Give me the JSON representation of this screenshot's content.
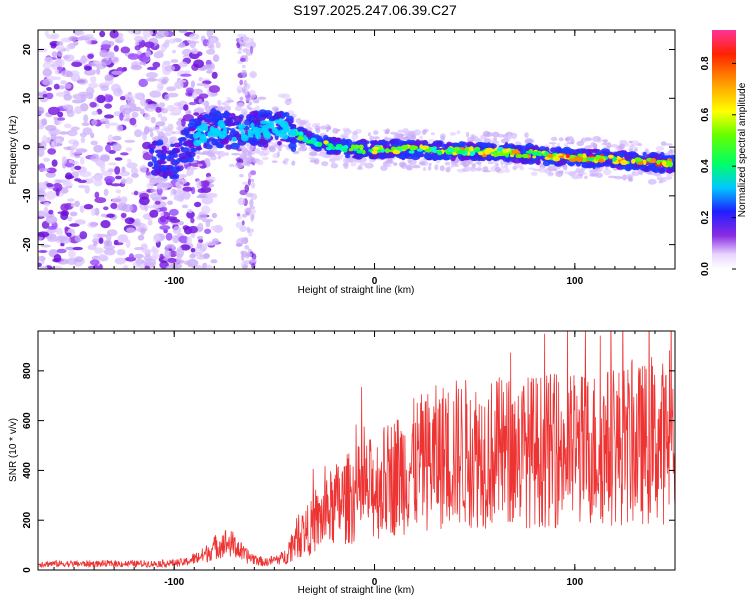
{
  "title": "S197.2025.247.06.39.C27",
  "colors": {
    "signal_line": "#ee3333",
    "spectrogram_track_low": "#7a1fe0",
    "spectrogram_track_high": "#ff2222"
  },
  "chart_data": [
    {
      "type": "heatmap",
      "name": "spectrogram",
      "xlabel": "Height of straight line (km)",
      "ylabel": "Frequency (Hz)",
      "xlim": [
        -168,
        150
      ],
      "ylim": [
        -25,
        24
      ],
      "xticks": [
        -100,
        0,
        100
      ],
      "xtick_labels": [
        "-100",
        "0",
        "100"
      ],
      "yticks": [
        20,
        10,
        0,
        -10,
        -20
      ],
      "ytick_labels": [
        "20",
        "10",
        "0",
        "-10",
        "-20"
      ],
      "track": {
        "x": [
          -112,
          -100,
          -90,
          -80,
          -70,
          -60,
          -50,
          -40,
          -30,
          -20,
          -10,
          0,
          20,
          40,
          60,
          80,
          100,
          120,
          140,
          150
        ],
        "y": [
          -2,
          -3,
          2,
          4,
          3,
          3.5,
          4,
          3,
          1,
          0,
          -0.5,
          -0.5,
          -0.5,
          -0.8,
          -1,
          -1.5,
          -2.2,
          -2.5,
          -3.2,
          -3.4
        ]
      },
      "colorbar": {
        "label": "Normalized spectral amplitude",
        "ticks": [
          0.0,
          0.2,
          0.4,
          0.6,
          0.8
        ],
        "tick_labels": [
          "0.0",
          "0.2",
          "0.4",
          "0.6",
          "0.8"
        ],
        "range": [
          0,
          0.93
        ]
      }
    },
    {
      "type": "line",
      "name": "snr",
      "xlabel": "Height of straight line (km)",
      "ylabel": "SNR (10 * v/v)",
      "xlim": [
        -168,
        150
      ],
      "ylim": [
        0,
        960
      ],
      "xticks": [
        -100,
        0,
        100
      ],
      "xtick_labels": [
        "-100",
        "0",
        "100"
      ],
      "yticks": [
        0,
        200,
        400,
        600,
        800
      ],
      "ytick_labels": [
        "0",
        "200",
        "400",
        "600",
        "800"
      ],
      "envelope": {
        "x": [
          -168,
          -110,
          -95,
          -85,
          -80,
          -75,
          -70,
          -65,
          -55,
          -45,
          -40,
          -30,
          -20,
          -10,
          0,
          10,
          20,
          30,
          40,
          60,
          80,
          100,
          120,
          140,
          150
        ],
        "y": [
          25,
          25,
          30,
          60,
          90,
          110,
          100,
          60,
          30,
          50,
          120,
          180,
          260,
          300,
          330,
          380,
          420,
          450,
          470,
          470,
          480,
          480,
          500,
          510,
          520
        ]
      }
    }
  ]
}
